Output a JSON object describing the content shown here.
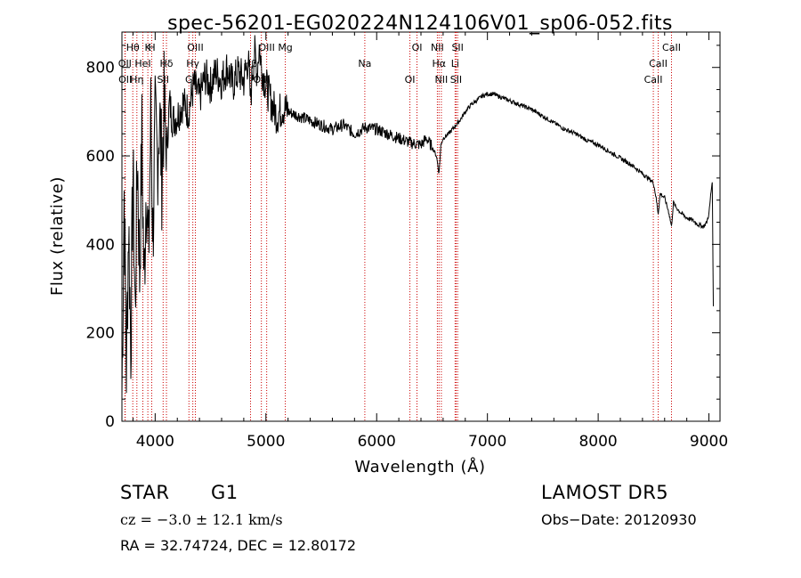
{
  "chart_data": {
    "type": "line",
    "title": "spec-56201-EG020224N124106V01_sp06-052.fits",
    "xlabel": "Wavelength (Å)",
    "ylabel": "Flux (relative)",
    "xlim": [
      3700,
      9100
    ],
    "ylim": [
      0,
      880
    ],
    "xticks": [
      4000,
      5000,
      6000,
      7000,
      8000,
      9000
    ],
    "yticks": [
      0,
      200,
      400,
      600,
      800
    ],
    "grid": false,
    "line_color": "#000000",
    "marker_color": "#cc0000",
    "series": [
      {
        "x": [
          3700,
          3720,
          3740,
          3760,
          3780,
          3800,
          3820,
          3840,
          3860,
          3880,
          3900,
          3920,
          3940,
          3960,
          3980,
          4000,
          4020,
          4040,
          4060,
          4080,
          4100,
          4130,
          4160,
          4200,
          4250,
          4300,
          4350,
          4400,
          4450,
          4500,
          4550,
          4600,
          4650,
          4700,
          4750,
          4800,
          4840,
          4861,
          4880,
          4900,
          4920,
          4940,
          4960,
          4980,
          5000,
          5050,
          5100,
          5150,
          5200,
          5300,
          5400,
          5500,
          5600,
          5700,
          5800,
          5900,
          6000,
          6100,
          6200,
          6300,
          6400,
          6450,
          6500,
          6540,
          6563,
          6580,
          6600,
          6650,
          6700,
          6750,
          6800,
          6850,
          6900,
          6950,
          7000,
          7050,
          7100,
          7150,
          7200,
          7300,
          7400,
          7500,
          7600,
          7700,
          7800,
          7900,
          8000,
          8100,
          8200,
          8300,
          8400,
          8498,
          8520,
          8542,
          8560,
          8600,
          8640,
          8662,
          8680,
          8700,
          8750,
          8800,
          8850,
          8900,
          8950,
          8980,
          9000,
          9020,
          9030,
          9040
        ],
        "y": [
          60,
          520,
          120,
          450,
          180,
          560,
          240,
          610,
          330,
          640,
          300,
          560,
          360,
          690,
          420,
          660,
          590,
          700,
          560,
          710,
          600,
          720,
          680,
          690,
          720,
          700,
          760,
          730,
          780,
          760,
          790,
          770,
          800,
          760,
          790,
          770,
          820,
          720,
          800,
          830,
          790,
          850,
          800,
          780,
          760,
          720,
          690,
          710,
          700,
          690,
          680,
          670,
          660,
          670,
          650,
          665,
          660,
          650,
          640,
          630,
          625,
          640,
          620,
          600,
          560,
          625,
          640,
          650,
          665,
          680,
          700,
          715,
          725,
          735,
          740,
          740,
          735,
          730,
          725,
          715,
          705,
          690,
          675,
          660,
          650,
          635,
          625,
          610,
          595,
          580,
          560,
          540,
          510,
          470,
          515,
          505,
          470,
          440,
          495,
          485,
          470,
          460,
          455,
          445,
          440,
          450,
          470,
          520,
          545,
          260
        ]
      }
    ],
    "lines": [
      {
        "label": "Hθ",
        "x": 3798
      },
      {
        "label": "OII",
        "x": 3727
      },
      {
        "label": "OII",
        "x": 3730
      },
      {
        "label": "K",
        "x": 3934
      },
      {
        "label": "HeI",
        "x": 3889
      },
      {
        "label": "Hη",
        "x": 3835
      },
      {
        "label": "H",
        "x": 3969
      },
      {
        "label": "Hδ",
        "x": 4102
      },
      {
        "label": "SII",
        "x": 4072
      },
      {
        "label": "OIII",
        "x": 4363
      },
      {
        "label": "Hγ",
        "x": 4340
      },
      {
        "label": "G",
        "x": 4305
      },
      {
        "label": "OIII",
        "x": 5007
      },
      {
        "label": "Hβ",
        "x": 4861
      },
      {
        "label": "OIII",
        "x": 4959
      },
      {
        "label": "Mg",
        "x": 5175
      },
      {
        "label": "Na",
        "x": 5893
      },
      {
        "label": "OI",
        "x": 6300
      },
      {
        "label": "OI",
        "x": 6364
      },
      {
        "label": "Hα",
        "x": 6563
      },
      {
        "label": "SII",
        "x": 6717
      },
      {
        "label": "NII",
        "x": 6548
      },
      {
        "label": "Li",
        "x": 6708
      },
      {
        "label": "NII",
        "x": 6584
      },
      {
        "label": "SII",
        "x": 6731
      },
      {
        "label": "CaII",
        "x": 8542
      },
      {
        "label": "CaII",
        "x": 8498
      },
      {
        "label": "CaII",
        "x": 8662
      }
    ]
  },
  "info": {
    "class": "STAR",
    "subclass": "G1",
    "survey": "LAMOST DR5",
    "cz": "cz = −3.0 ± 12.1 km/s",
    "obs_date": "Obs−Date: 20120930",
    "coords": "RA =  32.74724, DEC =  12.80172"
  }
}
